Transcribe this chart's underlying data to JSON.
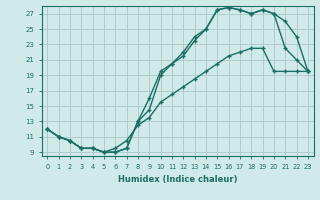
{
  "xlabel": "Humidex (Indice chaleur)",
  "bg_color": "#d0eaea",
  "grid_color": "#b0cccc",
  "line_color": "#1a6e64",
  "xlim": [
    -0.5,
    23.5
  ],
  "ylim": [
    8.5,
    28.0
  ],
  "xticks": [
    0,
    1,
    2,
    3,
    4,
    5,
    6,
    7,
    8,
    9,
    10,
    11,
    12,
    13,
    14,
    15,
    16,
    17,
    18,
    19,
    20,
    21,
    22,
    23
  ],
  "yticks": [
    9,
    11,
    13,
    15,
    17,
    19,
    21,
    23,
    25,
    27
  ],
  "line1_x": [
    0,
    1,
    2,
    3,
    4,
    5,
    6,
    7,
    8,
    9,
    10,
    11,
    12,
    13,
    14,
    15,
    16,
    17,
    18,
    19,
    20,
    21,
    22,
    23
  ],
  "line1_y": [
    12.0,
    11.0,
    10.5,
    9.5,
    9.5,
    9.0,
    9.0,
    9.5,
    13.0,
    16.0,
    19.5,
    20.5,
    22.0,
    24.0,
    25.0,
    27.5,
    27.8,
    27.5,
    27.0,
    27.5,
    27.0,
    26.0,
    24.0,
    19.5
  ],
  "line2_x": [
    0,
    1,
    2,
    3,
    4,
    5,
    6,
    7,
    8,
    9,
    10,
    11,
    12,
    13,
    14,
    15,
    16,
    17,
    18,
    19,
    20,
    21,
    22,
    23
  ],
  "line2_y": [
    12.0,
    11.0,
    10.5,
    9.5,
    9.5,
    9.0,
    9.0,
    9.5,
    13.0,
    14.5,
    19.0,
    20.5,
    21.5,
    23.5,
    25.0,
    27.5,
    27.8,
    27.5,
    27.0,
    27.5,
    27.0,
    22.5,
    21.0,
    19.5
  ],
  "line3_x": [
    0,
    1,
    2,
    3,
    4,
    5,
    6,
    7,
    8,
    9,
    10,
    11,
    12,
    13,
    14,
    15,
    16,
    17,
    18,
    19,
    20,
    21,
    22,
    23
  ],
  "line3_y": [
    12.0,
    11.0,
    10.5,
    9.5,
    9.5,
    9.0,
    9.5,
    10.5,
    12.5,
    13.5,
    15.5,
    16.5,
    17.5,
    18.5,
    19.5,
    20.5,
    21.5,
    22.0,
    22.5,
    22.5,
    19.5,
    19.5,
    19.5,
    19.5
  ]
}
